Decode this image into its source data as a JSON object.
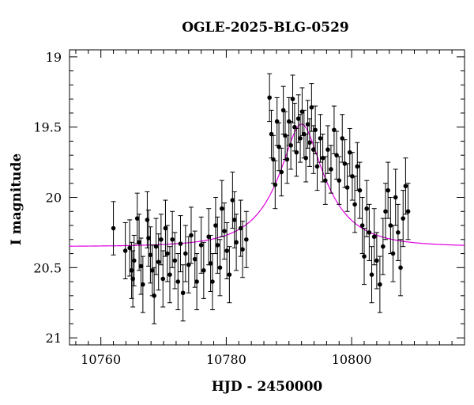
{
  "chart_data": {
    "type": "scatter",
    "title": "OGLE-2025-BLG-0529",
    "xlabel": "HJD - 2450000",
    "ylabel": "I magnitude",
    "xlim": [
      10755,
      10818
    ],
    "ylim": [
      21.05,
      18.95
    ],
    "y_inverted": true,
    "x_ticks": [
      10760,
      10780,
      10800
    ],
    "x_tick_labels": [
      "10760",
      "10780",
      "10800"
    ],
    "y_ticks": [
      19,
      19.5,
      20,
      20.5,
      21
    ],
    "y_tick_labels": [
      "19",
      "19.5",
      "20",
      "20.5",
      "21"
    ],
    "grid": false,
    "legend": "none",
    "marker_color": "#000000",
    "model_color": "#e000e0",
    "series": [
      {
        "kind": "points_with_errorbars",
        "points": [
          [
            10762.0,
            20.22,
            0.19
          ],
          [
            10763.9,
            20.38,
            0.2
          ],
          [
            10764.6,
            20.36,
            0.2
          ],
          [
            10764.9,
            20.52,
            0.2
          ],
          [
            10765.1,
            20.58,
            0.2
          ],
          [
            10765.3,
            20.45,
            0.18
          ],
          [
            10765.8,
            20.15,
            0.18
          ],
          [
            10766.1,
            20.32,
            0.2
          ],
          [
            10766.4,
            20.49,
            0.2
          ],
          [
            10766.7,
            20.62,
            0.2
          ],
          [
            10767.4,
            20.16,
            0.2
          ],
          [
            10767.6,
            20.29,
            0.2
          ],
          [
            10767.9,
            20.41,
            0.2
          ],
          [
            10768.2,
            20.52,
            0.18
          ],
          [
            10768.5,
            20.7,
            0.2
          ],
          [
            10768.8,
            20.35,
            0.2
          ],
          [
            10769.2,
            20.46,
            0.2
          ],
          [
            10769.6,
            20.3,
            0.18
          ],
          [
            10769.9,
            20.58,
            0.2
          ],
          [
            10770.3,
            20.22,
            0.2
          ],
          [
            10770.6,
            20.4,
            0.2
          ],
          [
            10771.0,
            20.55,
            0.2
          ],
          [
            10771.4,
            20.3,
            0.2
          ],
          [
            10771.8,
            20.45,
            0.2
          ],
          [
            10772.3,
            20.6,
            0.2
          ],
          [
            10772.7,
            20.33,
            0.2
          ],
          [
            10773.1,
            20.68,
            0.2
          ],
          [
            10773.5,
            20.4,
            0.2
          ],
          [
            10774.0,
            20.48,
            0.2
          ],
          [
            10774.4,
            20.27,
            0.2
          ],
          [
            10775.0,
            20.44,
            0.2
          ],
          [
            10775.3,
            20.6,
            0.2
          ],
          [
            10776.0,
            20.34,
            0.2
          ],
          [
            10776.4,
            20.52,
            0.2
          ],
          [
            10777.2,
            20.28,
            0.2
          ],
          [
            10777.5,
            20.47,
            0.2
          ],
          [
            10777.8,
            20.6,
            0.2
          ],
          [
            10778.3,
            20.2,
            0.2
          ],
          [
            10778.6,
            20.34,
            0.2
          ],
          [
            10779.0,
            20.5,
            0.2
          ],
          [
            10779.3,
            20.08,
            0.2
          ],
          [
            10779.7,
            20.24,
            0.2
          ],
          [
            10780.1,
            20.38,
            0.2
          ],
          [
            10780.5,
            20.55,
            0.2
          ],
          [
            10781.0,
            20.02,
            0.2
          ],
          [
            10781.3,
            20.16,
            0.2
          ],
          [
            10781.6,
            20.32,
            0.2
          ],
          [
            10782.3,
            20.22,
            0.2
          ],
          [
            10782.6,
            20.37,
            0.2
          ],
          [
            10783.2,
            20.3,
            0.2
          ],
          [
            10786.9,
            19.29,
            0.17
          ],
          [
            10787.2,
            19.55,
            0.17
          ],
          [
            10787.5,
            19.73,
            0.17
          ],
          [
            10787.8,
            19.91,
            0.17
          ],
          [
            10788.1,
            19.46,
            0.17
          ],
          [
            10788.4,
            19.64,
            0.17
          ],
          [
            10788.8,
            19.82,
            0.17
          ],
          [
            10789.1,
            19.38,
            0.17
          ],
          [
            10789.4,
            19.56,
            0.17
          ],
          [
            10789.7,
            19.73,
            0.17
          ],
          [
            10790.0,
            19.46,
            0.17
          ],
          [
            10790.3,
            19.63,
            0.17
          ],
          [
            10790.6,
            19.3,
            0.17
          ],
          [
            10790.9,
            19.5,
            0.17
          ],
          [
            10791.2,
            19.68,
            0.17
          ],
          [
            10791.5,
            19.44,
            0.17
          ],
          [
            10791.8,
            19.58,
            0.17
          ],
          [
            10792.1,
            19.39,
            0.17
          ],
          [
            10792.4,
            19.55,
            0.17
          ],
          [
            10792.7,
            19.72,
            0.17
          ],
          [
            10793.0,
            19.48,
            0.17
          ],
          [
            10793.3,
            19.61,
            0.17
          ],
          [
            10793.6,
            19.36,
            0.17
          ],
          [
            10793.9,
            19.66,
            0.17
          ],
          [
            10794.2,
            19.52,
            0.17
          ],
          [
            10794.5,
            19.78,
            0.17
          ],
          [
            10795.0,
            19.58,
            0.17
          ],
          [
            10795.4,
            19.72,
            0.17
          ],
          [
            10795.8,
            19.88,
            0.17
          ],
          [
            10796.2,
            19.66,
            0.17
          ],
          [
            10796.7,
            19.8,
            0.17
          ],
          [
            10797.2,
            19.52,
            0.17
          ],
          [
            10797.6,
            19.7,
            0.17
          ],
          [
            10798.0,
            19.88,
            0.17
          ],
          [
            10798.5,
            19.58,
            0.17
          ],
          [
            10798.9,
            19.76,
            0.17
          ],
          [
            10799.3,
            19.93,
            0.17
          ],
          [
            10799.7,
            19.68,
            0.17
          ],
          [
            10800.1,
            19.85,
            0.17
          ],
          [
            10800.5,
            20.05,
            0.2
          ],
          [
            10800.9,
            19.78,
            0.17
          ],
          [
            10801.3,
            19.95,
            0.2
          ],
          [
            10801.7,
            20.2,
            0.2
          ],
          [
            10802.0,
            20.42,
            0.2
          ],
          [
            10802.4,
            20.08,
            0.2
          ],
          [
            10802.8,
            20.25,
            0.2
          ],
          [
            10803.2,
            20.55,
            0.2
          ],
          [
            10803.6,
            20.28,
            0.2
          ],
          [
            10804.0,
            20.45,
            0.2
          ],
          [
            10804.5,
            20.62,
            0.2
          ],
          [
            10805.0,
            20.35,
            0.2
          ],
          [
            10805.4,
            20.1,
            0.2
          ],
          [
            10805.8,
            19.95,
            0.2
          ],
          [
            10806.2,
            20.2,
            0.2
          ],
          [
            10806.6,
            20.4,
            0.2
          ],
          [
            10807.0,
            20.0,
            0.2
          ],
          [
            10807.4,
            20.25,
            0.2
          ],
          [
            10807.8,
            20.5,
            0.2
          ],
          [
            10808.2,
            20.15,
            0.2
          ],
          [
            10808.6,
            19.92,
            0.2
          ],
          [
            10809.0,
            20.1,
            0.2
          ]
        ]
      },
      {
        "kind": "model_curve",
        "t0": 10792.0,
        "tE": 8.0,
        "u0": 0.35,
        "base_mag": 20.35,
        "blend_fraction": 0.62
      }
    ]
  }
}
